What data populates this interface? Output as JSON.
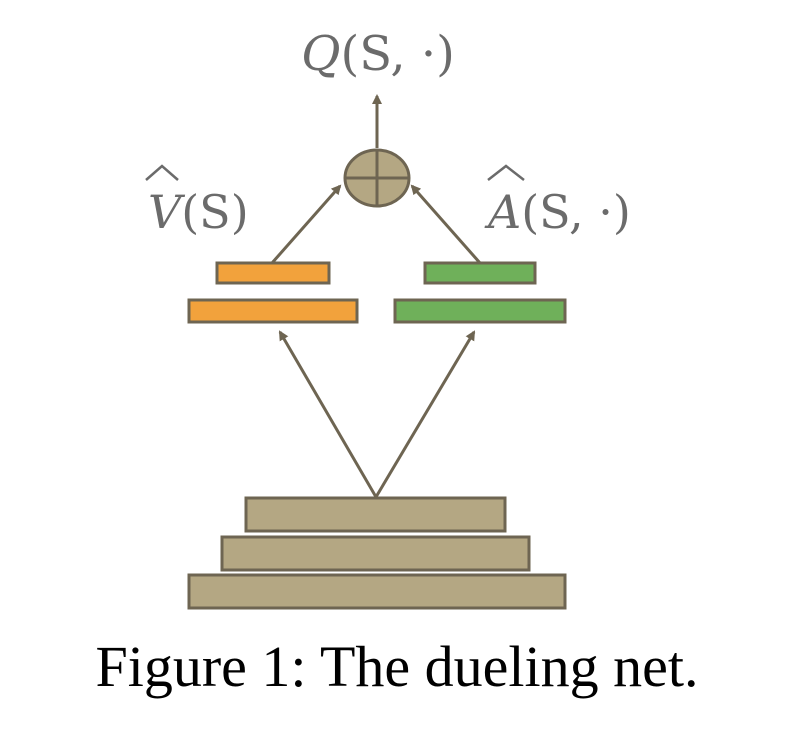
{
  "labels": {
    "q_output": {
      "symbol": "Q",
      "args": "(S, ·)"
    },
    "value": {
      "symbol": "V",
      "args": "(S)"
    },
    "advantage": {
      "symbol": "A",
      "args": "(S, ·)"
    }
  },
  "caption": "Figure 1: The dueling net.",
  "colors": {
    "value_stream": "#f2a23c",
    "advantage_stream": "#6fb05a",
    "base_layers": "#b4a783",
    "aggregator": "#b4a783",
    "stroke": "#6e6552",
    "arrow": "#6e6552"
  }
}
